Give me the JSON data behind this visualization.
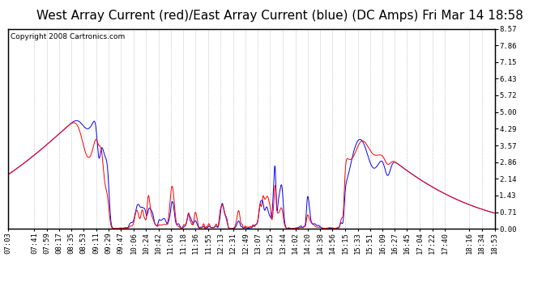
{
  "title": "West Array Current (red)/East Array Current (blue) (DC Amps) Fri Mar 14 18:58",
  "copyright": "Copyright 2008 Cartronics.com",
  "bg_color": "#ffffff",
  "plot_bg_color": "#ffffff",
  "grid_color": "#888888",
  "line_color_west": "#ff0000",
  "line_color_east": "#0000ff",
  "yticks": [
    0.0,
    0.71,
    1.43,
    2.14,
    2.86,
    3.57,
    4.29,
    5.0,
    5.72,
    6.43,
    7.15,
    7.86,
    8.57
  ],
  "ylim": [
    0.0,
    8.57
  ],
  "xtick_labels": [
    "07:03",
    "07:41",
    "07:59",
    "08:17",
    "08:35",
    "08:53",
    "09:11",
    "09:29",
    "09:47",
    "10:06",
    "10:24",
    "10:42",
    "11:00",
    "11:18",
    "11:36",
    "11:55",
    "12:13",
    "12:31",
    "12:49",
    "13:07",
    "13:25",
    "13:44",
    "14:02",
    "14:20",
    "14:38",
    "14:56",
    "15:15",
    "15:33",
    "15:51",
    "16:09",
    "16:27",
    "16:45",
    "17:04",
    "17:22",
    "17:40",
    "18:16",
    "18:34",
    "18:53"
  ],
  "title_fontsize": 11,
  "tick_fontsize": 6.5,
  "copyright_fontsize": 6.5
}
